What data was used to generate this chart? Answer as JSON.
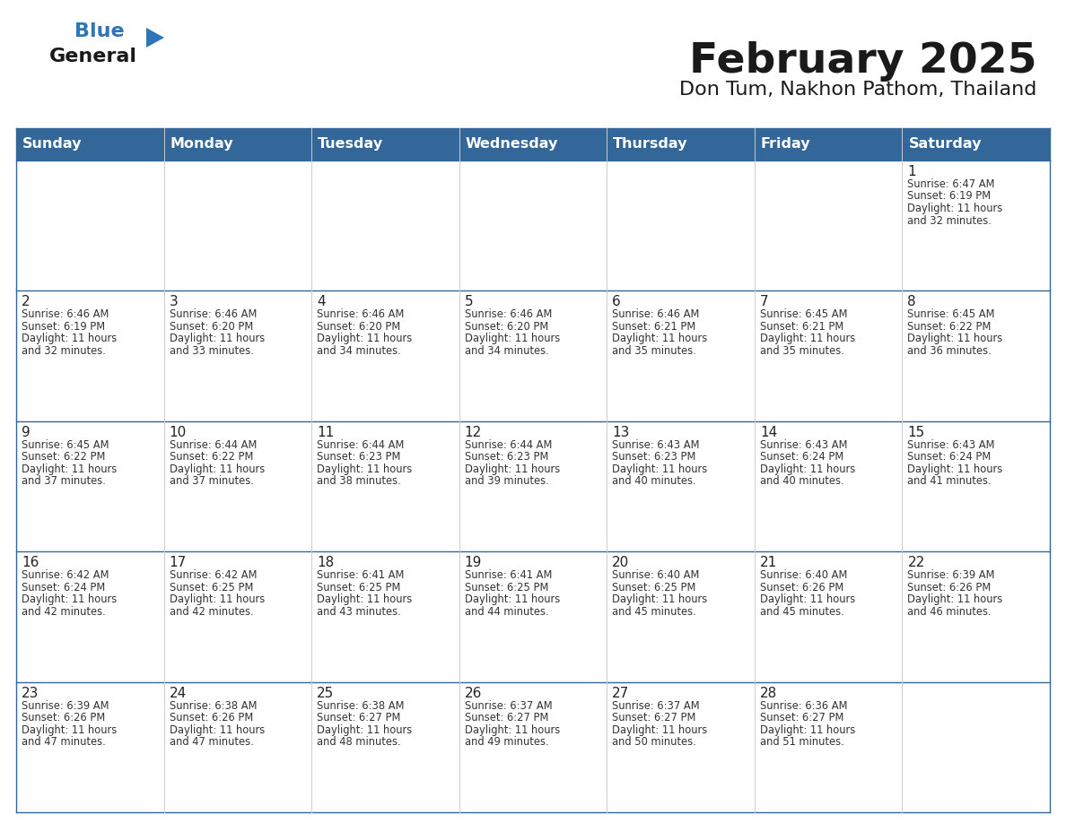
{
  "title": "February 2025",
  "subtitle": "Don Tum, Nakhon Pathom, Thailand",
  "days_of_week": [
    "Sunday",
    "Monday",
    "Tuesday",
    "Wednesday",
    "Thursday",
    "Friday",
    "Saturday"
  ],
  "header_bg": "#336699",
  "header_text": "#FFFFFF",
  "cell_bg": "#FFFFFF",
  "first_row_bg": "#F0F0F0",
  "row_separator": "#336699",
  "col_separator": "#CCCCCC",
  "outer_border": "#336699",
  "text_color": "#333333",
  "day_num_color": "#222222",
  "logo_general_color": "#1a1a1a",
  "logo_blue_color": "#2E75B6",
  "title_color": "#1a1a1a",
  "subtitle_color": "#1a1a1a",
  "calendar_data": [
    [
      null,
      null,
      null,
      null,
      null,
      null,
      {
        "day": 1,
        "sunrise": "6:47 AM",
        "sunset": "6:19 PM",
        "daylight": "11 hours and 32 minutes."
      }
    ],
    [
      {
        "day": 2,
        "sunrise": "6:46 AM",
        "sunset": "6:19 PM",
        "daylight": "11 hours and 32 minutes."
      },
      {
        "day": 3,
        "sunrise": "6:46 AM",
        "sunset": "6:20 PM",
        "daylight": "11 hours and 33 minutes."
      },
      {
        "day": 4,
        "sunrise": "6:46 AM",
        "sunset": "6:20 PM",
        "daylight": "11 hours and 34 minutes."
      },
      {
        "day": 5,
        "sunrise": "6:46 AM",
        "sunset": "6:20 PM",
        "daylight": "11 hours and 34 minutes."
      },
      {
        "day": 6,
        "sunrise": "6:46 AM",
        "sunset": "6:21 PM",
        "daylight": "11 hours and 35 minutes."
      },
      {
        "day": 7,
        "sunrise": "6:45 AM",
        "sunset": "6:21 PM",
        "daylight": "11 hours and 35 minutes."
      },
      {
        "day": 8,
        "sunrise": "6:45 AM",
        "sunset": "6:22 PM",
        "daylight": "11 hours and 36 minutes."
      }
    ],
    [
      {
        "day": 9,
        "sunrise": "6:45 AM",
        "sunset": "6:22 PM",
        "daylight": "11 hours and 37 minutes."
      },
      {
        "day": 10,
        "sunrise": "6:44 AM",
        "sunset": "6:22 PM",
        "daylight": "11 hours and 37 minutes."
      },
      {
        "day": 11,
        "sunrise": "6:44 AM",
        "sunset": "6:23 PM",
        "daylight": "11 hours and 38 minutes."
      },
      {
        "day": 12,
        "sunrise": "6:44 AM",
        "sunset": "6:23 PM",
        "daylight": "11 hours and 39 minutes."
      },
      {
        "day": 13,
        "sunrise": "6:43 AM",
        "sunset": "6:23 PM",
        "daylight": "11 hours and 40 minutes."
      },
      {
        "day": 14,
        "sunrise": "6:43 AM",
        "sunset": "6:24 PM",
        "daylight": "11 hours and 40 minutes."
      },
      {
        "day": 15,
        "sunrise": "6:43 AM",
        "sunset": "6:24 PM",
        "daylight": "11 hours and 41 minutes."
      }
    ],
    [
      {
        "day": 16,
        "sunrise": "6:42 AM",
        "sunset": "6:24 PM",
        "daylight": "11 hours and 42 minutes."
      },
      {
        "day": 17,
        "sunrise": "6:42 AM",
        "sunset": "6:25 PM",
        "daylight": "11 hours and 42 minutes."
      },
      {
        "day": 18,
        "sunrise": "6:41 AM",
        "sunset": "6:25 PM",
        "daylight": "11 hours and 43 minutes."
      },
      {
        "day": 19,
        "sunrise": "6:41 AM",
        "sunset": "6:25 PM",
        "daylight": "11 hours and 44 minutes."
      },
      {
        "day": 20,
        "sunrise": "6:40 AM",
        "sunset": "6:25 PM",
        "daylight": "11 hours and 45 minutes."
      },
      {
        "day": 21,
        "sunrise": "6:40 AM",
        "sunset": "6:26 PM",
        "daylight": "11 hours and 45 minutes."
      },
      {
        "day": 22,
        "sunrise": "6:39 AM",
        "sunset": "6:26 PM",
        "daylight": "11 hours and 46 minutes."
      }
    ],
    [
      {
        "day": 23,
        "sunrise": "6:39 AM",
        "sunset": "6:26 PM",
        "daylight": "11 hours and 47 minutes."
      },
      {
        "day": 24,
        "sunrise": "6:38 AM",
        "sunset": "6:26 PM",
        "daylight": "11 hours and 47 minutes."
      },
      {
        "day": 25,
        "sunrise": "6:38 AM",
        "sunset": "6:27 PM",
        "daylight": "11 hours and 48 minutes."
      },
      {
        "day": 26,
        "sunrise": "6:37 AM",
        "sunset": "6:27 PM",
        "daylight": "11 hours and 49 minutes."
      },
      {
        "day": 27,
        "sunrise": "6:37 AM",
        "sunset": "6:27 PM",
        "daylight": "11 hours and 50 minutes."
      },
      {
        "day": 28,
        "sunrise": "6:36 AM",
        "sunset": "6:27 PM",
        "daylight": "11 hours and 51 minutes."
      },
      null
    ]
  ]
}
